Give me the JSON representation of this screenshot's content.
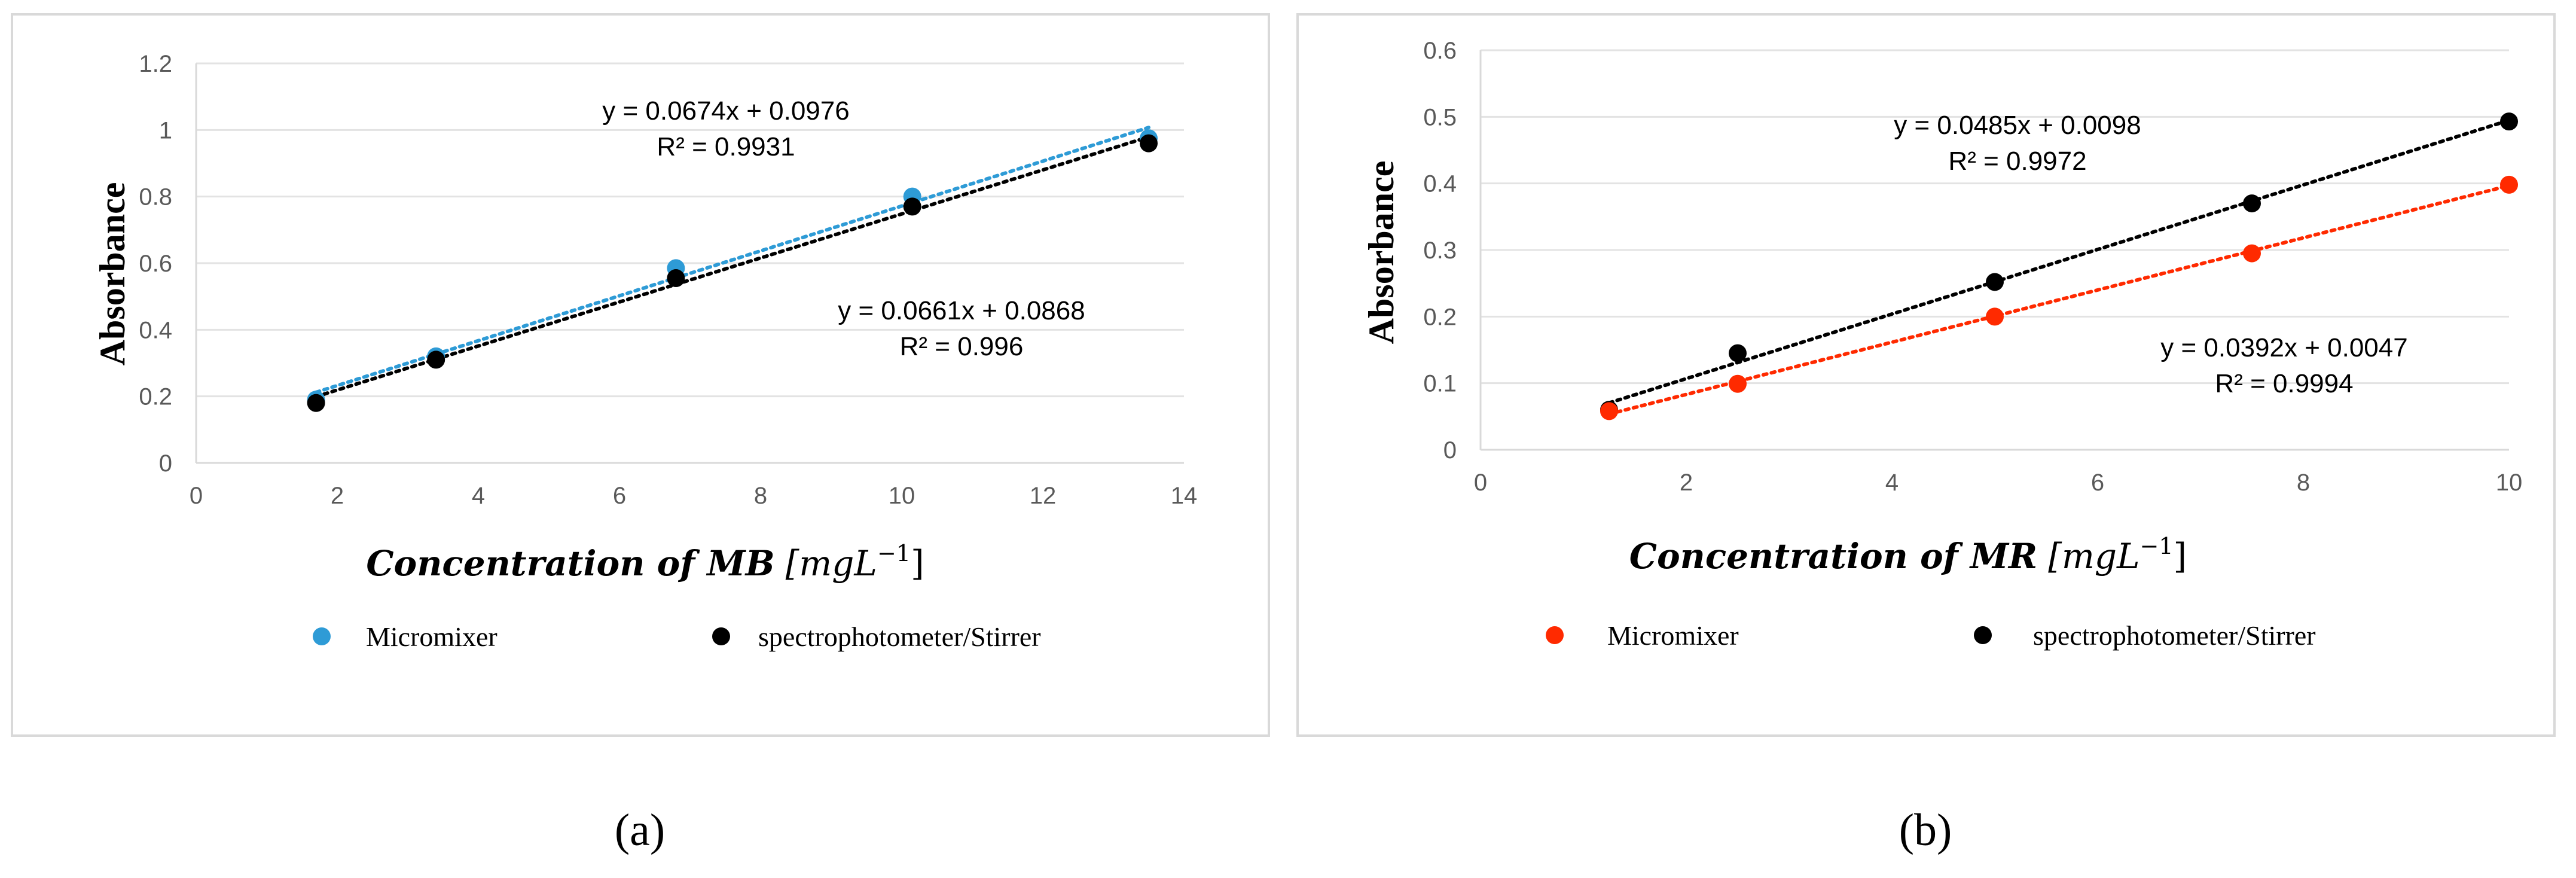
{
  "captions": [
    "(a)",
    "(b)"
  ],
  "chart_data": [
    {
      "type": "scatter",
      "title": "",
      "xlabel_parts": {
        "bold": "Concentration of MB",
        "unit": "[mgL",
        "exp": "−1",
        "close": "]"
      },
      "ylabel": "Absorbance",
      "xlim": [
        0,
        14
      ],
      "ylim": [
        0,
        1.2
      ],
      "x_ticks": [
        "0",
        "2",
        "4",
        "6",
        "8",
        "10",
        "12",
        "14"
      ],
      "y_ticks": [
        "0",
        "0.2",
        "0.4",
        "0.6",
        "0.8",
        "1",
        "1.2"
      ],
      "legend": [
        "Micromixer",
        "spectrophotometer/Stirrer"
      ],
      "series": [
        {
          "name": "Micromixer",
          "color": "#2e9bd6",
          "x": [
            1.7,
            3.4,
            6.8,
            10.15,
            13.5
          ],
          "y": [
            0.19,
            0.32,
            0.585,
            0.8,
            0.975
          ],
          "trend": {
            "slope": 0.0674,
            "intercept": 0.0976
          }
        },
        {
          "name": "spectrophotometer/Stirrer",
          "color": "#000000",
          "x": [
            1.7,
            3.4,
            6.8,
            10.15,
            13.5
          ],
          "y": [
            0.18,
            0.31,
            0.555,
            0.77,
            0.96
          ],
          "trend": {
            "slope": 0.0661,
            "intercept": 0.0868
          }
        }
      ],
      "annotations": [
        {
          "line1": "y = 0.0674x + 0.0976",
          "line2": "R² = 0.9931"
        },
        {
          "line1": "y = 0.0661x + 0.0868",
          "line2": "R² = 0.996"
        }
      ]
    },
    {
      "type": "scatter",
      "title": "",
      "xlabel_parts": {
        "bold": "Concentration of MR",
        "unit": "[mgL",
        "exp": "−1",
        "close": "]"
      },
      "ylabel": "Absorbance",
      "xlim": [
        0,
        10
      ],
      "ylim": [
        0,
        0.6
      ],
      "x_ticks": [
        "0",
        "2",
        "4",
        "6",
        "8",
        "10"
      ],
      "y_ticks": [
        "0",
        "0.1",
        "0.2",
        "0.3",
        "0.4",
        "0.5",
        "0.6"
      ],
      "legend": [
        "Micromixer",
        "spectrophotometer/Stirrer"
      ],
      "series": [
        {
          "name": "spectrophotometer/Stirrer",
          "color": "#000000",
          "x": [
            1.25,
            2.5,
            5,
            7.5,
            10
          ],
          "y": [
            0.06,
            0.145,
            0.252,
            0.37,
            0.493
          ],
          "trend": {
            "slope": 0.0485,
            "intercept": 0.0098
          }
        },
        {
          "name": "Micromixer",
          "color": "#ff2a00",
          "x": [
            1.25,
            2.5,
            5,
            7.5,
            10
          ],
          "y": [
            0.058,
            0.099,
            0.2,
            0.295,
            0.398
          ],
          "trend": {
            "slope": 0.0392,
            "intercept": 0.0047
          }
        }
      ],
      "annotations": [
        {
          "line1": "y = 0.0485x + 0.0098",
          "line2": "R² = 0.9972"
        },
        {
          "line1": "y = 0.0392x + 0.0047",
          "line2": "R² = 0.9994"
        }
      ]
    }
  ]
}
